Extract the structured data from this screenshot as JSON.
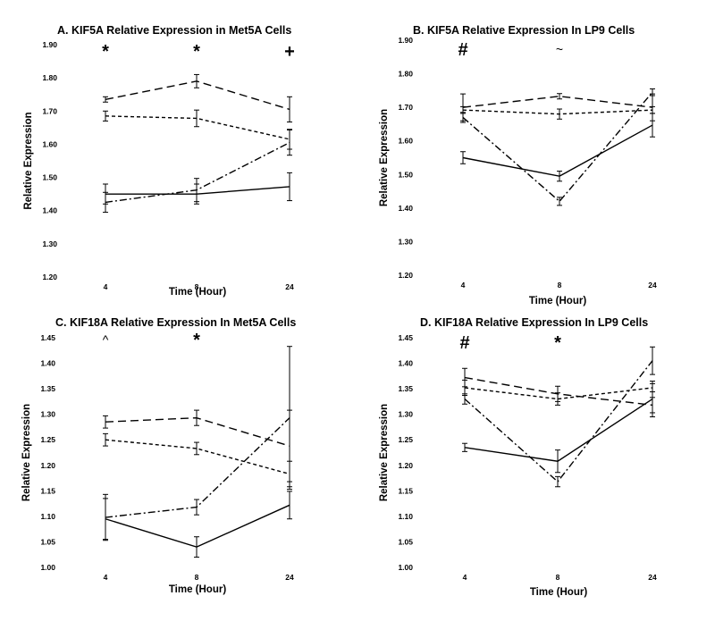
{
  "chart_data": [
    {
      "type": "line",
      "title": "A. KIF5A Relative Expression in Met5A Cells",
      "xlabel": "Time (Hour)",
      "ylabel": "Relative Expression",
      "categories": [
        "4",
        "8",
        "24"
      ],
      "ylim": [
        1.2,
        1.9
      ],
      "yticks": [
        "1.20",
        "1.30",
        "1.40",
        "1.50",
        "1.60",
        "1.70",
        "1.80",
        "1.90"
      ],
      "grid": false,
      "legend": "none",
      "annotations": [
        "*",
        "*",
        "+"
      ],
      "series": [
        {
          "style": "long-dash",
          "values": [
            1.735,
            1.79,
            1.705
          ],
          "errors": [
            0.008,
            0.02,
            0.038
          ]
        },
        {
          "style": "short-dash",
          "values": [
            1.685,
            1.678,
            1.615
          ],
          "errors": [
            0.015,
            0.025,
            0.03
          ]
        },
        {
          "style": "dash-dot",
          "values": [
            1.425,
            1.462,
            1.605
          ],
          "errors": [
            0.03,
            0.035,
            0.038
          ]
        },
        {
          "style": "solid",
          "values": [
            1.45,
            1.45,
            1.472
          ],
          "errors": [
            0.03,
            0.03,
            0.042
          ]
        }
      ]
    },
    {
      "type": "line",
      "title": "B. KIF5A Relative Expression In LP9 Cells",
      "xlabel": "Time (Hour)",
      "ylabel": "Relative Expression",
      "categories": [
        "4",
        "8",
        "24"
      ],
      "ylim": [
        1.2,
        1.9
      ],
      "yticks": [
        "1.20",
        "1.30",
        "1.40",
        "1.50",
        "1.60",
        "1.70",
        "1.80",
        "1.90"
      ],
      "grid": false,
      "legend": "none",
      "annotations": [
        "#",
        "~",
        ""
      ],
      "series": [
        {
          "style": "long-dash",
          "values": [
            1.7,
            1.733,
            1.7
          ],
          "errors": [
            0.04,
            0.008,
            0.04
          ]
        },
        {
          "style": "short-dash",
          "values": [
            1.692,
            1.68,
            1.692
          ],
          "errors": [
            0.01,
            0.015,
            0.01
          ]
        },
        {
          "style": "dash-dot",
          "values": [
            1.67,
            1.42,
            1.745
          ],
          "errors": [
            0.015,
            0.012,
            0.01
          ]
        },
        {
          "style": "solid",
          "values": [
            1.55,
            1.495,
            1.647
          ],
          "errors": [
            0.018,
            0.015,
            0.035
          ]
        }
      ]
    },
    {
      "type": "line",
      "title": "C. KIF18A Relative Expression In Met5A Cells",
      "xlabel": "Time (Hour)",
      "ylabel": "Relative Expression",
      "categories": [
        "4",
        "8",
        "24"
      ],
      "ylim": [
        1.0,
        1.45
      ],
      "yticks": [
        "1.00",
        "1.05",
        "1.10",
        "1.15",
        "1.20",
        "1.25",
        "1.30",
        "1.35",
        "1.40",
        "1.45"
      ],
      "grid": false,
      "legend": "none",
      "annotations": [
        "^",
        "*",
        ""
      ],
      "series": [
        {
          "style": "long-dash",
          "values": [
            1.285,
            1.293,
            1.238
          ],
          "errors": [
            0.012,
            0.015,
            0.07
          ]
        },
        {
          "style": "short-dash",
          "values": [
            1.25,
            1.233,
            1.183
          ],
          "errors": [
            0.012,
            0.012,
            0.025
          ]
        },
        {
          "style": "dash-dot",
          "values": [
            1.098,
            1.118,
            1.293
          ],
          "errors": [
            0.045,
            0.015,
            0.14
          ]
        },
        {
          "style": "solid",
          "values": [
            1.095,
            1.04,
            1.122
          ],
          "errors": [
            0.04,
            0.02,
            0.027
          ]
        }
      ]
    },
    {
      "type": "line",
      "title": "D. KIF18A Relative Expression In LP9 Cells",
      "xlabel": "Time (Hour)",
      "ylabel": "Relative Expression",
      "categories": [
        "4",
        "8",
        "24"
      ],
      "ylim": [
        1.0,
        1.45
      ],
      "yticks": [
        "1.00",
        "1.05",
        "1.10",
        "1.15",
        "1.20",
        "1.25",
        "1.30",
        "1.35",
        "1.40",
        "1.45"
      ],
      "grid": false,
      "legend": "none",
      "annotations": [
        "#",
        "*",
        ""
      ],
      "series": [
        {
          "style": "long-dash",
          "values": [
            1.372,
            1.34,
            1.318
          ],
          "errors": [
            0.018,
            0.015,
            0.015
          ]
        },
        {
          "style": "short-dash",
          "values": [
            1.352,
            1.33,
            1.352
          ],
          "errors": [
            0.015,
            0.012,
            0.008
          ]
        },
        {
          "style": "dash-dot",
          "values": [
            1.33,
            1.168,
            1.405
          ],
          "errors": [
            0.01,
            0.01,
            0.027
          ]
        },
        {
          "style": "solid",
          "values": [
            1.235,
            1.208,
            1.33
          ],
          "errors": [
            0.008,
            0.022,
            0.035
          ]
        }
      ]
    }
  ]
}
